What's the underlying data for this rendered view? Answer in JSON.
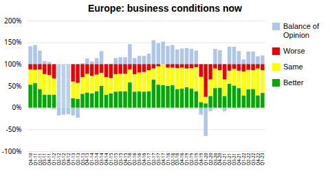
{
  "chart_data": {
    "type": "bar",
    "title": "Europe: business conditions now",
    "categories": [
      "Q4-10",
      "Q1-11",
      "Q2-11",
      "Q3-11",
      "Q4-11",
      "Q1-12",
      "Q2-12",
      "Q3-12",
      "Q4-12",
      "Q1-13",
      "Q2-13",
      "Q3-13",
      "Q4-13",
      "Q1-14",
      "Q2-14",
      "Q3-14",
      "Q4-14",
      "Q1-15",
      "Q2-15",
      "Q3-15",
      "Q4-15",
      "Q1-16",
      "Q2-16",
      "Q3-16",
      "Q4-16",
      "Q1-17",
      "Q2-17",
      "Q3-17",
      "Q4-17",
      "Q1-18",
      "Q2-18",
      "Q3-18",
      "Q4-18",
      "Q1-19",
      "Q2-19",
      "Q3-19",
      "Q4-19",
      "Q1-20",
      "Q2-20",
      "Q3-20",
      "Q4-20",
      "Q1-21",
      "Q2-21",
      "Q3-21",
      "Q4-21",
      "Q1-22",
      "Q2-22",
      "Q3-22",
      "Q4-22",
      "Q1-23"
    ],
    "stacked": true,
    "balance": {
      "name": "Balance of\nOpinion",
      "color": "#aec6e8",
      "values": [
        41,
        44,
        31,
        7,
        5,
        -3,
        -18,
        -16,
        -15,
        -18,
        -23,
        2,
        13,
        6,
        14,
        30,
        0,
        1,
        14,
        16,
        16,
        46,
        14,
        19,
        19,
        24,
        55,
        48,
        52,
        42,
        44,
        34,
        36,
        37,
        35,
        31,
        -16,
        -65,
        -8,
        35,
        32,
        -8,
        40,
        40,
        30,
        11,
        29,
        29,
        18,
        20
      ]
    },
    "series": [
      {
        "name": "Worse",
        "color": "#ee0000",
        "colors": [
          "#ee0000",
          "#ee0000",
          "#ee0000",
          "#ee0000",
          "#ee0000",
          "#ee0000",
          "#b8d0e8",
          "#b8d0e8",
          "#b8d0e8",
          "#ee0000",
          "#ee0000",
          "#ee0000",
          "#ee0000",
          "#ee0000",
          "#ee0000",
          "#ee0000",
          "#ee0000",
          "#ee0000",
          "#ee0000",
          "#ee0000",
          "#ee0000",
          "#ee0000",
          "#ee0000",
          "#ee0000",
          "#ee0000",
          "#ee0000",
          "#ee0000",
          "#ee0000",
          "#ee0000",
          "#ee0000",
          "#ee0000",
          "#ee0000",
          "#ee0000",
          "#ee0000",
          "#ee0000",
          "#ee0000",
          "#ee0000",
          "#ee0000",
          "#ee0000",
          "#ee0000",
          "#ee0000",
          "#ee0000",
          "#ee0000",
          "#ee0000",
          "#ee0000",
          "#ee0000",
          "#ee0000",
          "#ee0000",
          "#ee0000",
          "#ee0000"
        ],
        "values": [
          12,
          13,
          12,
          23,
          25,
          33,
          34,
          34,
          35,
          40,
          43,
          30,
          22,
          27,
          24,
          20,
          30,
          32,
          23,
          22,
          22,
          12,
          23,
          19,
          18,
          14,
          10,
          5,
          0,
          8,
          8,
          9,
          8,
          10,
          9,
          7,
          29,
          75,
          35,
          10,
          14,
          35,
          15,
          11,
          15,
          17,
          13,
          14,
          10,
          14
        ]
      },
      {
        "name": "Same",
        "color": "#ffff00",
        "colors": [
          "#ffff00",
          "#ffff00",
          "#ffff00",
          "#ffff00",
          "#ffff00",
          "#ffff00",
          "#b8d0e8",
          "#b8d0e8",
          "#b8d0e8",
          "#ffff00",
          "#ffff00",
          "#ffff00",
          "#ffff00",
          "#ffff00",
          "#ffff00",
          "#ffff00",
          "#ffff00",
          "#ffff00",
          "#ffff00",
          "#ffff00",
          "#ffff00",
          "#ffff00",
          "#ffff00",
          "#ffff00",
          "#ffff00",
          "#ffff00",
          "#ffff00",
          "#ffff00",
          "#ffff00",
          "#ffff00",
          "#ffff00",
          "#ffff00",
          "#ffff00",
          "#ffff00",
          "#ffff00",
          "#ffff00",
          "#ffff00",
          "#ffff00",
          "#ffff00",
          "#ffff00",
          "#ffff00",
          "#ffff00",
          "#ffff00",
          "#ffff00",
          "#ffff00",
          "#ffff00",
          "#ffff00",
          "#ffff00",
          "#ffff00",
          "#ffff00"
        ],
        "values": [
          35,
          30,
          45,
          47,
          45,
          37,
          50,
          48,
          45,
          38,
          37,
          38,
          43,
          40,
          38,
          30,
          40,
          35,
          40,
          40,
          40,
          30,
          40,
          43,
          45,
          48,
          25,
          42,
          48,
          42,
          40,
          48,
          48,
          43,
          47,
          55,
          58,
          15,
          38,
          45,
          40,
          38,
          30,
          38,
          40,
          55,
          45,
          43,
          62,
          52
        ]
      },
      {
        "name": "Better",
        "color": "#00aa00",
        "colors": [
          "#00aa00",
          "#00aa00",
          "#00aa00",
          "#00aa00",
          "#00aa00",
          "#00aa00",
          "#b8d0e8",
          "#b8d0e8",
          "#b8d0e8",
          "#00aa00",
          "#00aa00",
          "#00aa00",
          "#00aa00",
          "#00aa00",
          "#00aa00",
          "#00aa00",
          "#00aa00",
          "#00aa00",
          "#00aa00",
          "#00aa00",
          "#00aa00",
          "#00aa00",
          "#00aa00",
          "#00aa00",
          "#00aa00",
          "#00aa00",
          "#00aa00",
          "#00aa00",
          "#00aa00",
          "#00aa00",
          "#00aa00",
          "#00aa00",
          "#00aa00",
          "#00aa00",
          "#00aa00",
          "#00aa00",
          "#00aa00",
          "#00aa00",
          "#00aa00",
          "#00aa00",
          "#00aa00",
          "#00aa00",
          "#00aa00",
          "#00aa00",
          "#00aa00",
          "#00aa00",
          "#00aa00",
          "#00aa00",
          "#00aa00",
          "#00aa00"
        ],
        "values": [
          53,
          57,
          43,
          30,
          30,
          30,
          16,
          18,
          20,
          22,
          20,
          32,
          35,
          33,
          38,
          50,
          30,
          33,
          37,
          38,
          38,
          58,
          37,
          38,
          37,
          38,
          65,
          53,
          52,
          50,
          52,
          43,
          44,
          47,
          44,
          38,
          13,
          10,
          27,
          45,
          46,
          27,
          55,
          51,
          45,
          28,
          42,
          43,
          28,
          34
        ]
      }
    ],
    "ylim": [
      -100,
      200
    ],
    "yticks": [
      {
        "value": -100,
        "label": "-100%"
      },
      {
        "value": -50,
        "label": "-50%"
      },
      {
        "value": 0,
        "label": "0%"
      },
      {
        "value": 50,
        "label": "50%"
      },
      {
        "value": 100,
        "label": "100%"
      },
      {
        "value": 150,
        "label": "150%"
      },
      {
        "value": 200,
        "label": "200%"
      }
    ],
    "grid": "y",
    "legend": "right"
  }
}
